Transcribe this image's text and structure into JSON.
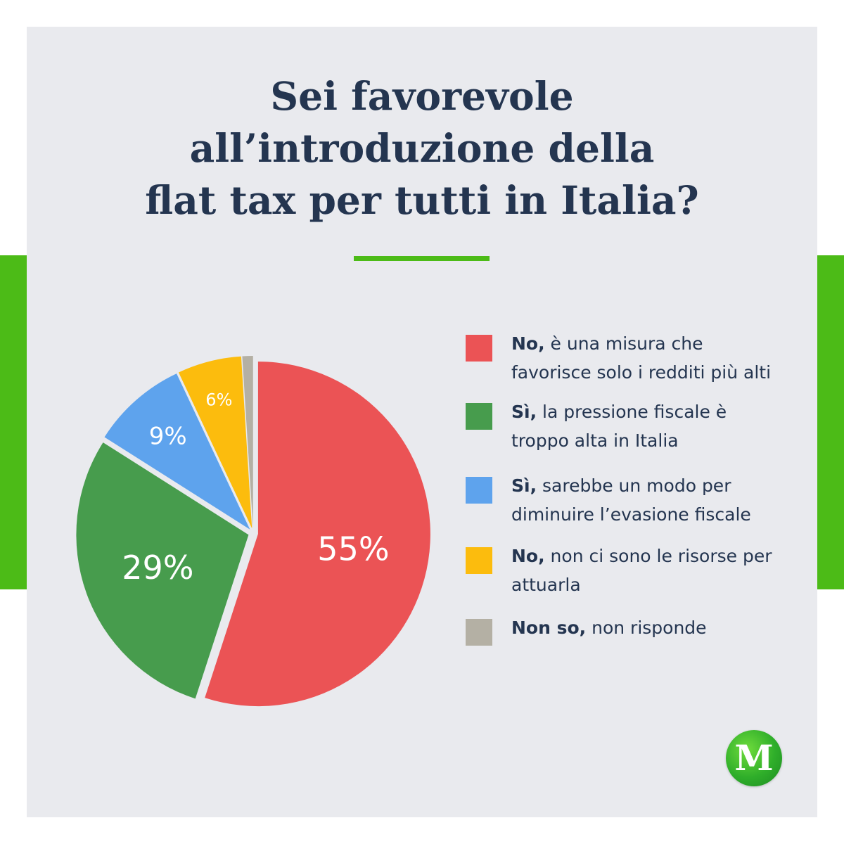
{
  "chart_data": {
    "type": "pie",
    "title": [
      "Sei favorevole",
      "all’introduzione della",
      "flat tax per tutti in Italia?"
    ],
    "slices": [
      {
        "label_bold": "No,",
        "label_rest": " è una misura che favorisce solo i redditi più alti",
        "value": 55,
        "display": "55%",
        "color": "#eb5355"
      },
      {
        "label_bold": "Sì,",
        "label_rest": " la pressione fiscale è troppo alta in Italia",
        "value": 29,
        "display": "29%",
        "color": "#479c4d"
      },
      {
        "label_bold": "Sì,",
        "label_rest": " sarebbe un modo per diminuire l’evasione fiscale",
        "value": 9,
        "display": "9%",
        "color": "#5ea3ed"
      },
      {
        "label_bold": "No,",
        "label_rest": " non ci sono le risorse per attuarla",
        "value": 6,
        "display": "6%",
        "color": "#fcbc0d"
      },
      {
        "label_bold": "Non so,",
        "label_rest": " non risponde",
        "value": 1,
        "display": "",
        "color": "#b4b0a4"
      }
    ]
  },
  "logo": {
    "letter": "M",
    "color": "#2fae2a"
  },
  "accent_color": "#4cbb17"
}
